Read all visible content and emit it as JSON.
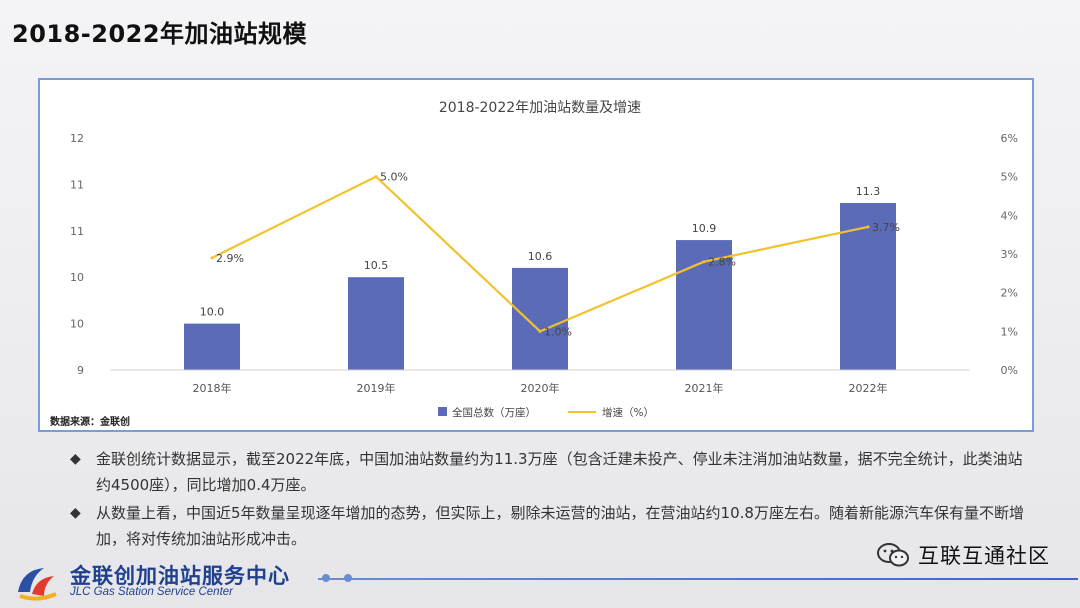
{
  "slide": {
    "title": "2018-2022年加油站规模"
  },
  "chart_data": {
    "type": "bar+line",
    "title": "2018-2022年加油站数量及增速",
    "categories": [
      "2018年",
      "2019年",
      "2020年",
      "2021年",
      "2022年"
    ],
    "series": [
      {
        "name": "全国总数（万座）",
        "kind": "bar",
        "axis": "left",
        "values": [
          10.0,
          10.5,
          10.6,
          10.9,
          11.3
        ],
        "labels": [
          "10.0",
          "10.5",
          "10.6",
          "10.9",
          "11.3"
        ],
        "color": "#5b6bb8"
      },
      {
        "name": "增速（%）",
        "kind": "line",
        "axis": "right",
        "values": [
          2.9,
          5.0,
          1.0,
          2.8,
          3.7
        ],
        "labels": [
          "2.9%",
          "5.0%",
          "1.0%",
          "2.8%",
          "3.7%"
        ],
        "color": "#f2c22a"
      }
    ],
    "left_axis": {
      "ylim": [
        9.5,
        12
      ],
      "tick_labels": [
        "9",
        "10",
        "10",
        "11",
        "11",
        "12"
      ]
    },
    "right_axis": {
      "ylim": [
        0,
        6
      ],
      "tick_labels": [
        "0%",
        "1%",
        "2%",
        "3%",
        "4%",
        "5%",
        "6%"
      ]
    },
    "grid": false,
    "legend": "bottom",
    "source": "数据来源：金联创"
  },
  "bullets": [
    "金联创统计数据显示，截至2022年底，中国加油站数量约为11.3万座（包含迁建未投产、停业未注消加油站数量，据不完全统计，此类油站约4500座），同比增加0.4万座。",
    "从数量上看，中国近5年数量呈现逐年增加的态势，但实际上，剔除未运营的油站，在营油站约10.8万座左右。随着新能源汽车保有量不断增加，将对传统加油站形成冲击。"
  ],
  "bullet_marker": "◆",
  "footer": {
    "logo_cn": "金联创加油站服务中心",
    "logo_en": "JLC Gas Station Service Center",
    "watermark": "互联互通社区"
  },
  "colors": {
    "accent": "#7d9bd6",
    "logo": "#1f3f8f",
    "bar": "#5b6bb8",
    "line": "#f2c22a"
  }
}
